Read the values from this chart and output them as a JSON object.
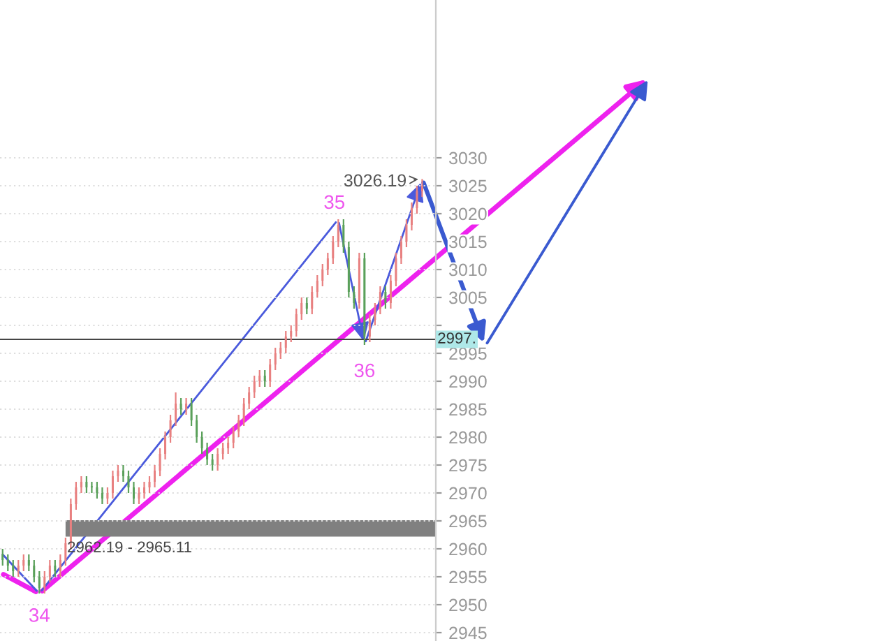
{
  "chart_data": {
    "type": "candlestick",
    "categories": [
      null,
      null,
      null,
      null,
      null,
      null,
      null,
      null,
      null,
      null,
      null,
      null,
      null,
      null,
      null,
      null,
      null,
      null,
      null,
      null,
      null,
      null,
      null,
      null,
      null,
      null,
      null,
      null,
      null,
      null,
      null,
      null,
      null,
      null,
      null,
      null,
      null,
      null,
      null,
      null,
      null,
      null,
      null,
      null,
      null,
      null,
      null,
      null,
      null,
      null,
      null,
      null,
      null,
      null,
      null,
      null,
      null,
      null,
      null,
      null,
      null,
      null,
      null,
      null,
      null,
      null,
      null,
      null,
      null,
      null,
      null,
      null,
      null,
      null,
      null,
      null,
      null,
      null,
      null,
      null,
      null
    ],
    "ohlc": [
      [
        2959,
        2960,
        2957,
        2958
      ],
      [
        2958,
        2959,
        2956,
        2957
      ],
      [
        2957,
        2958,
        2955,
        2956
      ],
      [
        2956,
        2958,
        2955,
        2957
      ],
      [
        2957,
        2959,
        2956,
        2958
      ],
      [
        2958,
        2959,
        2956,
        2957
      ],
      [
        2957,
        2958,
        2954,
        2955
      ],
      [
        2955,
        2956,
        2952,
        2953
      ],
      [
        2953,
        2956,
        2952,
        2955
      ],
      [
        2955,
        2958,
        2954,
        2957
      ],
      [
        2957,
        2958,
        2955,
        2956
      ],
      [
        2956,
        2959,
        2955,
        2958
      ],
      [
        2958,
        2962,
        2957,
        2961
      ],
      [
        2961,
        2969,
        2960,
        2968
      ],
      [
        2968,
        2972,
        2967,
        2971
      ],
      [
        2971,
        2973,
        2970,
        2972
      ],
      [
        2972,
        2973,
        2970,
        2971
      ],
      [
        2971,
        2972,
        2970,
        2971
      ],
      [
        2971,
        2972,
        2969,
        2970
      ],
      [
        2970,
        2971,
        2968,
        2969
      ],
      [
        2969,
        2971,
        2968,
        2970
      ],
      [
        2970,
        2974,
        2969,
        2973
      ],
      [
        2973,
        2975,
        2972,
        2974
      ],
      [
        2974,
        2975,
        2972,
        2973
      ],
      [
        2973,
        2974,
        2970,
        2971
      ],
      [
        2971,
        2972,
        2968,
        2969
      ],
      [
        2969,
        2971,
        2968,
        2970
      ],
      [
        2970,
        2972,
        2969,
        2971
      ],
      [
        2971,
        2973,
        2970,
        2972
      ],
      [
        2972,
        2975,
        2971,
        2974
      ],
      [
        2974,
        2978,
        2973,
        2977
      ],
      [
        2977,
        2981,
        2976,
        2980
      ],
      [
        2980,
        2984,
        2979,
        2983
      ],
      [
        2983,
        2988,
        2982,
        2986
      ],
      [
        2986,
        2987,
        2984,
        2985
      ],
      [
        2985,
        2987,
        2984,
        2986
      ],
      [
        2986,
        2987,
        2982,
        2983
      ],
      [
        2983,
        2984,
        2979,
        2980
      ],
      [
        2980,
        2981,
        2977,
        2978
      ],
      [
        2978,
        2979,
        2975,
        2976
      ],
      [
        2976,
        2977,
        2974,
        2975
      ],
      [
        2975,
        2978,
        2974,
        2977
      ],
      [
        2977,
        2979,
        2976,
        2978
      ],
      [
        2978,
        2980,
        2977,
        2979
      ],
      [
        2979,
        2982,
        2978,
        2981
      ],
      [
        2981,
        2984,
        2980,
        2983
      ],
      [
        2983,
        2987,
        2982,
        2986
      ],
      [
        2986,
        2989,
        2985,
        2988
      ],
      [
        2988,
        2991,
        2987,
        2990
      ],
      [
        2990,
        2992,
        2989,
        2991
      ],
      [
        2991,
        2992,
        2989,
        2990
      ],
      [
        2990,
        2994,
        2989,
        2993
      ],
      [
        2993,
        2996,
        2992,
        2995
      ],
      [
        2995,
        2997,
        2994,
        2996
      ],
      [
        2996,
        2999,
        2995,
        2998
      ],
      [
        2998,
        3000,
        2997,
        2999
      ],
      [
        2999,
        3003,
        2998,
        3002
      ],
      [
        3002,
        3005,
        3001,
        3004
      ],
      [
        3004,
        3005,
        3002,
        3003
      ],
      [
        3003,
        3007,
        3002,
        3006
      ],
      [
        3006,
        3009,
        3005,
        3008
      ],
      [
        3008,
        3011,
        3007,
        3010
      ],
      [
        3010,
        3013,
        3009,
        3012
      ],
      [
        3012,
        3016,
        3011,
        3015
      ],
      [
        3015,
        3019,
        3014,
        3018
      ],
      [
        3018,
        3019,
        3013,
        3014
      ],
      [
        3014,
        3015,
        3005,
        3006
      ],
      [
        3006,
        3007,
        3003,
        3004
      ],
      [
        3004,
        3013,
        3003,
        3012
      ],
      [
        3012,
        3013,
        2996.5,
        2998
      ],
      [
        2998,
        3002,
        2997,
        3001
      ],
      [
        3001,
        3004,
        3000,
        3003
      ],
      [
        3003,
        3007,
        3002,
        3006
      ],
      [
        3006,
        3007,
        3003,
        3004
      ],
      [
        3004,
        3009,
        3003,
        3008
      ],
      [
        3008,
        3013,
        3007,
        3012
      ],
      [
        3012,
        3016,
        3011,
        3015
      ],
      [
        3015,
        3019,
        3014,
        3018
      ],
      [
        3018,
        3022,
        3017,
        3021
      ],
      [
        3021,
        3025,
        3020,
        3024
      ],
      [
        3024,
        3026.19,
        3023,
        3025
      ]
    ],
    "colors": [
      "#5aa05a",
      "#5aa05a",
      "#5aa05a",
      "#e88080",
      "#e88080",
      "#5aa05a",
      "#5aa05a",
      "#5aa05a",
      "#e88080",
      "#e88080",
      "#5aa05a",
      "#e88080",
      "#e88080",
      "#e88080",
      "#e88080",
      "#e88080",
      "#5aa05a",
      "#5aa05a",
      "#5aa05a",
      "#5aa05a",
      "#e88080",
      "#e88080",
      "#e88080",
      "#5aa05a",
      "#5aa05a",
      "#5aa05a",
      "#e88080",
      "#e88080",
      "#e88080",
      "#e88080",
      "#e88080",
      "#e88080",
      "#e88080",
      "#e88080",
      "#5aa05a",
      "#e88080",
      "#5aa05a",
      "#5aa05a",
      "#5aa05a",
      "#5aa05a",
      "#5aa05a",
      "#e88080",
      "#e88080",
      "#e88080",
      "#e88080",
      "#e88080",
      "#e88080",
      "#e88080",
      "#e88080",
      "#e88080",
      "#5aa05a",
      "#e88080",
      "#e88080",
      "#e88080",
      "#e88080",
      "#e88080",
      "#e88080",
      "#e88080",
      "#5aa05a",
      "#e88080",
      "#e88080",
      "#e88080",
      "#e88080",
      "#e88080",
      "#e88080",
      "#5aa05a",
      "#5aa05a",
      "#5aa05a",
      "#e88080",
      "#5aa05a",
      "#e88080",
      "#e88080",
      "#e88080",
      "#5aa05a",
      "#e88080",
      "#e88080",
      "#e88080",
      "#e88080",
      "#e88080",
      "#e88080",
      "#e88080"
    ],
    "bands": [
      {
        "axis": "y",
        "from": 2962.19,
        "to": 2965.11,
        "label": "2962.19 - 2965.11",
        "color": "#808080"
      }
    ],
    "ref_lines": [
      {
        "axis": "y",
        "value": 2997.5,
        "label": "2997.",
        "color": "#444444"
      }
    ],
    "annotations": [
      {
        "text": "34",
        "y": 2952
      },
      {
        "text": "35",
        "y": 3019
      },
      {
        "text": "36",
        "y": 2996.5
      },
      "3026.19"
    ],
    "ylim": [
      2943.5,
      3058.25
    ],
    "yticks": [
      2945,
      2950,
      2955,
      2960,
      2965,
      2970,
      2975,
      2980,
      2985,
      2990,
      2995,
      {
        "value": 3000,
        "label": null
      },
      3005,
      3010,
      3015,
      3020,
      3025,
      3030
    ],
    "grid": "y"
  }
}
